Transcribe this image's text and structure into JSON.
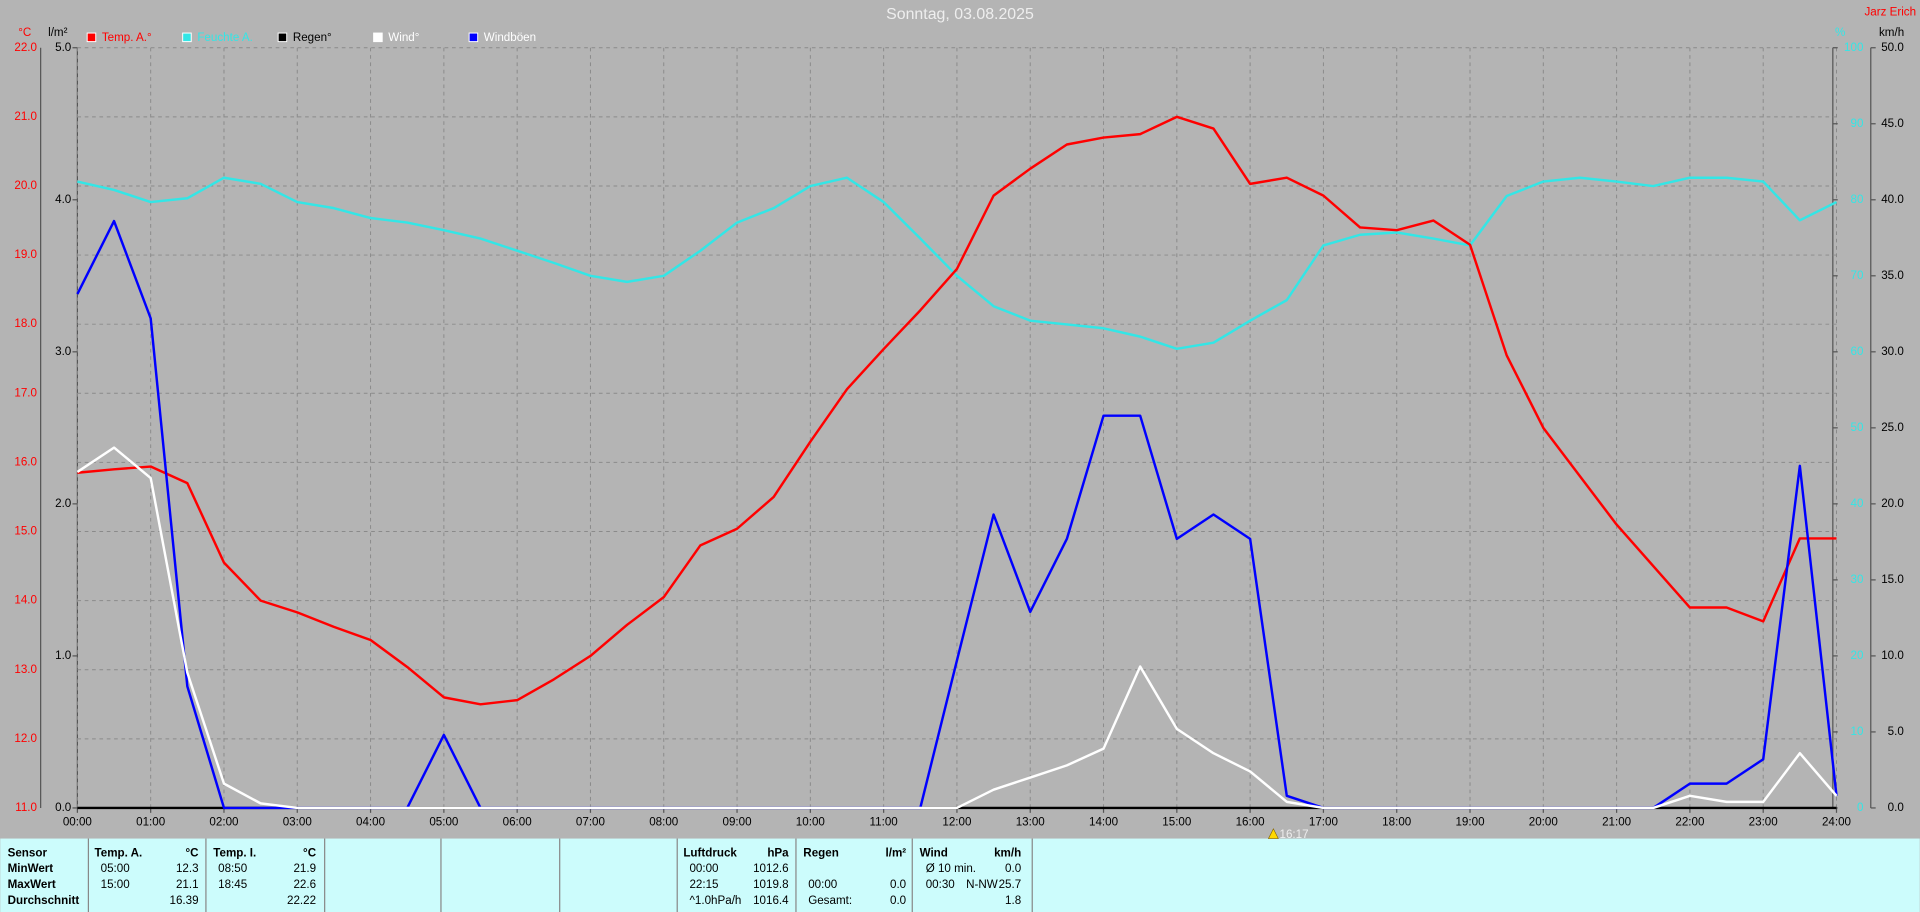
{
  "chart_data": {
    "type": "line",
    "title": "Sonntag, 03.08.2025",
    "author": "Jarz Erich",
    "ylabel": "°C",
    "y_rain_label": "l/m²",
    "y2label": "km/h",
    "y_hum_label": "%",
    "annotation": "16:17",
    "grid": true,
    "x": [
      0,
      0.5,
      1,
      1.5,
      2,
      2.5,
      3,
      3.5,
      4,
      4.5,
      5,
      5.5,
      6,
      6.5,
      7,
      7.5,
      8,
      8.5,
      9,
      9.5,
      10,
      10.5,
      11,
      11.5,
      12,
      12.5,
      13,
      13.5,
      14,
      14.5,
      15,
      15.5,
      16,
      16.5,
      17,
      17.5,
      18,
      18.5,
      19,
      19.5,
      20,
      20.5,
      21,
      21.5,
      22,
      22.5,
      23,
      23.5,
      24
    ],
    "xlim": [
      0,
      24
    ],
    "xticks": [
      {
        "value": 0,
        "label": "00:00"
      },
      {
        "value": 1,
        "label": "01:00"
      },
      {
        "value": 2,
        "label": "02:00"
      },
      {
        "value": 3,
        "label": "03:00"
      },
      {
        "value": 4,
        "label": "04:00"
      },
      {
        "value": 5,
        "label": "05:00"
      },
      {
        "value": 6,
        "label": "06:00"
      },
      {
        "value": 7,
        "label": "07:00"
      },
      {
        "value": 8,
        "label": "08:00"
      },
      {
        "value": 9,
        "label": "09:00"
      },
      {
        "value": 10,
        "label": "10:00"
      },
      {
        "value": 11,
        "label": "11:00"
      },
      {
        "value": 12,
        "label": "12:00"
      },
      {
        "value": 13,
        "label": "13:00"
      },
      {
        "value": 14,
        "label": "14:00"
      },
      {
        "value": 15,
        "label": "15:00"
      },
      {
        "value": 16,
        "label": "16:00"
      },
      {
        "value": 17,
        "label": "17:00"
      },
      {
        "value": 18,
        "label": "18:00"
      },
      {
        "value": 19,
        "label": "19:00"
      },
      {
        "value": 20,
        "label": "20:00"
      },
      {
        "value": 21,
        "label": "21:00"
      },
      {
        "value": 22,
        "label": "22:00"
      },
      {
        "value": 23,
        "label": "23:00"
      },
      {
        "value": 24,
        "label": "24:00"
      }
    ],
    "ylim": [
      11,
      22
    ],
    "yticks": [
      {
        "value": 11,
        "label": "11.0"
      },
      {
        "value": 12,
        "label": "12.0"
      },
      {
        "value": 13,
        "label": "13.0"
      },
      {
        "value": 14,
        "label": "14.0"
      },
      {
        "value": 15,
        "label": "15.0"
      },
      {
        "value": 16,
        "label": "16.0"
      },
      {
        "value": 17,
        "label": "17.0"
      },
      {
        "value": 18,
        "label": "18.0"
      },
      {
        "value": 19,
        "label": "19.0"
      },
      {
        "value": 20,
        "label": "20.0"
      },
      {
        "value": 21,
        "label": "21.0"
      },
      {
        "value": 22,
        "label": "22.0"
      }
    ],
    "y_rain_lim": [
      0,
      5
    ],
    "y_rain_ticks": [
      {
        "value": 0,
        "label": "0.0"
      },
      {
        "value": 1,
        "label": "1.0"
      },
      {
        "value": 2,
        "label": "2.0"
      },
      {
        "value": 3,
        "label": "3.0"
      },
      {
        "value": 4,
        "label": "4.0"
      },
      {
        "value": 5,
        "label": "5.0"
      }
    ],
    "y2lim": [
      0,
      50
    ],
    "y2ticks": [
      {
        "value": 0,
        "label": "0.0"
      },
      {
        "value": 5,
        "label": "5.0"
      },
      {
        "value": 10,
        "label": "10.0"
      },
      {
        "value": 15,
        "label": "15.0"
      },
      {
        "value": 20,
        "label": "20.0"
      },
      {
        "value": 25,
        "label": "25.0"
      },
      {
        "value": 30,
        "label": "30.0"
      },
      {
        "value": 35,
        "label": "35.0"
      },
      {
        "value": 40,
        "label": "40.0"
      },
      {
        "value": 45,
        "label": "45.0"
      },
      {
        "value": 50,
        "label": "50.0"
      }
    ],
    "y_hum_lim": [
      0,
      100
    ],
    "y_hum_ticks": [
      0,
      10,
      20,
      30,
      40,
      50,
      60,
      70,
      80,
      90,
      100
    ],
    "series": [
      {
        "name": "Feuchte A.",
        "color": "#33e6e6",
        "label_color": "#33e6e6",
        "axis": "y_hum",
        "values": [
          82.4,
          81.3,
          79.7,
          80.2,
          82.9,
          82.1,
          79.7,
          78.9,
          77.6,
          77,
          76,
          74.9,
          73.3,
          71.7,
          70,
          69.2,
          70,
          73.3,
          77,
          78.9,
          81.8,
          82.9,
          79.7,
          74.9,
          70,
          66,
          64.1,
          63.6,
          63.1,
          62,
          60.4,
          61.2,
          64.1,
          66.8,
          74,
          75.4,
          75.7,
          74.9,
          74,
          80.5,
          82.4,
          82.9,
          82.4,
          81.8,
          82.9,
          82.9,
          82.4,
          77.3,
          79.7
        ]
      },
      {
        "name": "Temp. A.°",
        "color": "#ff0000",
        "label_color": "#ff0000",
        "axis": "y",
        "values": [
          15.85,
          15.9,
          15.94,
          15.7,
          14.55,
          14.0,
          13.83,
          13.62,
          13.43,
          13.04,
          12.6,
          12.5,
          12.56,
          12.86,
          13.2,
          13.65,
          14.05,
          14.8,
          15.04,
          15.5,
          16.3,
          17.06,
          17.64,
          18.2,
          18.8,
          19.86,
          20.25,
          20.6,
          20.7,
          20.75,
          21.0,
          20.83,
          20.03,
          20.12,
          19.86,
          19.4,
          19.36,
          19.5,
          19.15,
          17.55,
          16.5,
          15.8,
          15.1,
          14.5,
          13.9,
          13.9,
          13.7,
          14.9,
          14.9
        ]
      },
      {
        "name": "Regen°",
        "color": "#000000",
        "label_color": "#000000",
        "axis": "y_rain",
        "values": [
          0,
          0,
          0,
          0,
          0,
          0,
          0,
          0,
          0,
          0,
          0,
          0,
          0,
          0,
          0,
          0,
          0,
          0,
          0,
          0,
          0,
          0,
          0,
          0,
          0,
          0,
          0,
          0,
          0,
          0,
          0,
          0,
          0,
          0,
          0,
          0,
          0,
          0,
          0,
          0,
          0,
          0,
          0,
          0,
          0,
          0,
          0,
          0,
          0
        ]
      },
      {
        "name": "Windböen",
        "color": "#0000ff",
        "label_color": "#ffffff",
        "axis": "y2",
        "values": [
          33.8,
          38.6,
          32.2,
          8.0,
          0,
          0,
          0,
          0,
          0,
          0,
          4.8,
          0,
          0,
          0,
          0,
          0,
          0,
          0,
          0,
          0,
          0,
          0,
          0,
          0,
          9.7,
          19.3,
          12.9,
          17.7,
          25.8,
          25.8,
          17.7,
          19.3,
          17.7,
          0.8,
          0,
          0,
          0,
          0,
          0,
          0,
          0,
          0,
          0,
          0,
          1.6,
          1.6,
          3.2,
          22.5,
          0.8
        ]
      },
      {
        "name": "Wind°",
        "color": "#ffffff",
        "label_color": "#ffffff",
        "axis": "y2",
        "values": [
          22.1,
          23.7,
          21.7,
          8.9,
          1.6,
          0.3,
          0,
          0,
          0,
          0,
          0,
          0,
          0,
          0,
          0,
          0,
          0,
          0,
          0,
          0,
          0,
          0,
          0,
          0,
          0,
          1.2,
          2.0,
          2.8,
          3.9,
          9.3,
          5.2,
          3.6,
          2.4,
          0.4,
          0,
          0,
          0,
          0,
          0,
          0,
          0,
          0,
          0,
          0,
          0.8,
          0.4,
          0.4,
          3.6,
          0.8
        ]
      }
    ]
  },
  "table": {
    "row_labels": [
      "Sensor",
      "MinWert",
      "MaxWert",
      "Durchschnitt"
    ],
    "blocks": [
      {
        "header": "Temp. A.",
        "unit": "°C",
        "rows": [
          {
            "label": "05:00",
            "value": "12.3"
          },
          {
            "label": "15:00",
            "value": "21.1"
          },
          {
            "value": "16.39"
          }
        ]
      },
      {
        "header": "Temp. I.",
        "unit": "°C",
        "rows": [
          {
            "label": "08:50",
            "value": "21.9"
          },
          {
            "label": "18:45",
            "value": "22.6"
          },
          {
            "value": "22.22"
          }
        ]
      },
      {
        "header": "Luftdruck",
        "unit": "hPa",
        "rows": [
          {
            "label": "00:00",
            "value": "1012.6"
          },
          {
            "label": "22:15",
            "value": "1019.8"
          },
          {
            "label": "^1.0hPa/h",
            "value": "1016.4"
          }
        ]
      },
      {
        "header": "Regen",
        "unit": "l/m²",
        "rows": [
          {},
          {
            "label": "00:00",
            "value": "0.0"
          },
          {
            "label": "Gesamt:",
            "value": "0.0"
          }
        ]
      },
      {
        "header": "Wind",
        "unit": "km/h",
        "rows": [
          {
            "label": "Ø 10 min.",
            "value": "0.0"
          },
          {
            "label": "00:30",
            "dir": "N-NW",
            "value": "25.7"
          },
          {
            "value": "1.8"
          }
        ]
      }
    ]
  }
}
